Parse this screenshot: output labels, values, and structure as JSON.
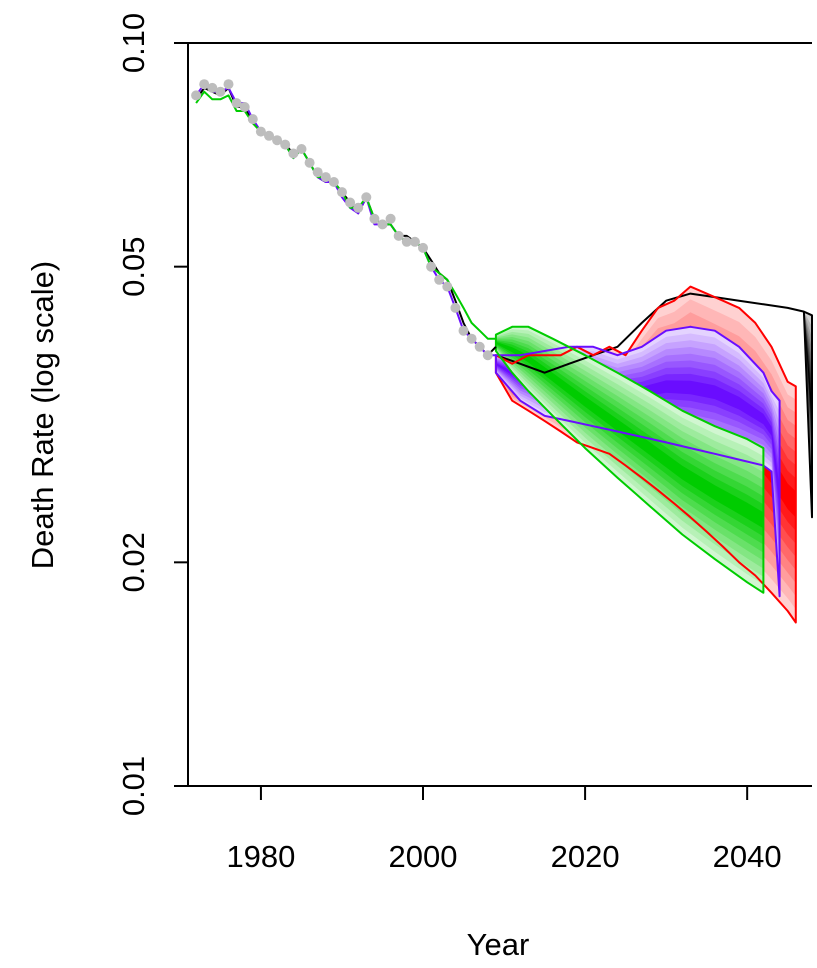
{
  "chart_data": {
    "type": "line",
    "title": "",
    "xlabel": "Year",
    "ylabel": "Death Rate (log scale)",
    "x_axis": {
      "range": [
        1971,
        2048
      ],
      "ticks": [
        1980,
        2000,
        2020,
        2040
      ]
    },
    "y_axis": {
      "scale": "log",
      "range": [
        0.01,
        0.1
      ],
      "ticks": [
        0.01,
        0.02,
        0.05,
        0.1
      ],
      "tick_labels": [
        "0.01",
        "0.02",
        "0.05",
        "0.10"
      ]
    },
    "grid": false,
    "legend": "none",
    "observed": {
      "color": "#bdbdbd",
      "x": [
        1972,
        1973,
        1974,
        1975,
        1976,
        1977,
        1978,
        1979,
        1980,
        1981,
        1982,
        1983,
        1984,
        1985,
        1986,
        1987,
        1988,
        1989,
        1990,
        1991,
        1992,
        1993,
        1994,
        1995,
        1996,
        1997,
        1998,
        1999,
        2000,
        2001,
        2002,
        2003,
        2004,
        2005,
        2006,
        2007,
        2008
      ],
      "y": [
        0.085,
        0.088,
        0.087,
        0.086,
        0.088,
        0.083,
        0.082,
        0.079,
        0.076,
        0.075,
        0.074,
        0.073,
        0.071,
        0.072,
        0.069,
        0.067,
        0.066,
        0.065,
        0.063,
        0.061,
        0.06,
        0.062,
        0.058,
        0.057,
        0.058,
        0.055,
        0.054,
        0.054,
        0.053,
        0.05,
        0.048,
        0.047,
        0.044,
        0.041,
        0.04,
        0.039,
        0.038
      ]
    },
    "series": [
      {
        "color": "#000000",
        "history": {
          "x": [
            1972,
            1973,
            1974,
            1975,
            1976,
            1977,
            1978,
            1979,
            1980,
            1981,
            1982,
            1983,
            1984,
            1985,
            1986,
            1987,
            1988,
            1989,
            1990,
            1991,
            1992,
            1993,
            1994,
            1995,
            1996,
            1997,
            1998,
            1999,
            2000,
            2001,
            2002,
            2003,
            2004,
            2005,
            2006,
            2007,
            2008,
            2009
          ],
          "y": [
            0.084,
            0.087,
            0.086,
            0.085,
            0.087,
            0.082,
            0.082,
            0.078,
            0.076,
            0.075,
            0.074,
            0.073,
            0.071,
            0.072,
            0.069,
            0.066,
            0.065,
            0.065,
            0.063,
            0.061,
            0.059,
            0.062,
            0.058,
            0.057,
            0.057,
            0.055,
            0.055,
            0.054,
            0.053,
            0.051,
            0.049,
            0.048,
            0.045,
            0.042,
            0.04,
            0.039,
            0.038,
            0.039
          ]
        },
        "fan": {
          "x": [
            2009,
            2012,
            2015,
            2018,
            2021,
            2024,
            2027,
            2030,
            2033,
            2036,
            2039,
            2042,
            2045,
            2047,
            2048
          ],
          "upper": [
            0.038,
            0.037,
            0.036,
            0.037,
            0.038,
            0.039,
            0.042,
            0.045,
            0.046,
            0.0455,
            0.045,
            0.0445,
            0.044,
            0.0435,
            0.043
          ],
          "lower": [
            0.038,
            0.037,
            0.036,
            0.037,
            0.038,
            0.039,
            0.042,
            0.045,
            0.046,
            0.0455,
            0.045,
            0.0445,
            0.044,
            0.0435,
            0.023
          ]
        }
      },
      {
        "color": "#ff0000",
        "fan": {
          "x": [
            2009,
            2011,
            2013,
            2015,
            2017,
            2019,
            2021,
            2023,
            2025,
            2027,
            2029,
            2031,
            2033,
            2035,
            2037,
            2039,
            2041,
            2043,
            2045,
            2046
          ],
          "upper": [
            0.038,
            0.037,
            0.038,
            0.038,
            0.038,
            0.039,
            0.038,
            0.039,
            0.038,
            0.041,
            0.044,
            0.045,
            0.047,
            0.046,
            0.045,
            0.044,
            0.042,
            0.039,
            0.035,
            0.0345
          ],
          "lower": [
            0.036,
            0.033,
            0.032,
            0.031,
            0.03,
            0.029,
            0.0285,
            0.028,
            0.027,
            0.026,
            0.025,
            0.024,
            0.023,
            0.022,
            0.021,
            0.02,
            0.0192,
            0.0182,
            0.0172,
            0.0166
          ]
        }
      },
      {
        "color": "#6a0dff",
        "history": {
          "x": [
            1972,
            1973,
            1974,
            1975,
            1976,
            1977,
            1978,
            1979,
            1980,
            1981,
            1982,
            1983,
            1984,
            1985,
            1986,
            1987,
            1988,
            1989,
            1990,
            1991,
            1992,
            1993,
            1994,
            1995,
            1996,
            1997,
            1998,
            1999,
            2000,
            2001,
            2002,
            2003,
            2004,
            2005,
            2006,
            2007,
            2008,
            2009
          ],
          "y": [
            0.085,
            0.088,
            0.086,
            0.086,
            0.087,
            0.083,
            0.083,
            0.079,
            0.076,
            0.075,
            0.074,
            0.073,
            0.07,
            0.072,
            0.069,
            0.066,
            0.065,
            0.065,
            0.062,
            0.06,
            0.059,
            0.062,
            0.057,
            0.057,
            0.057,
            0.055,
            0.054,
            0.054,
            0.053,
            0.05,
            0.048,
            0.047,
            0.044,
            0.041,
            0.04,
            0.039,
            0.038,
            0.038
          ]
        },
        "fan": {
          "x": [
            2009,
            2012,
            2015,
            2018,
            2021,
            2024,
            2027,
            2030,
            2033,
            2036,
            2039,
            2042,
            2043,
            2044
          ],
          "upper": [
            0.038,
            0.038,
            0.0385,
            0.039,
            0.039,
            0.038,
            0.039,
            0.041,
            0.0415,
            0.041,
            0.039,
            0.036,
            0.034,
            0.033
          ],
          "lower": [
            0.036,
            0.033,
            0.0315,
            0.031,
            0.0305,
            0.03,
            0.0295,
            0.029,
            0.0285,
            0.028,
            0.0275,
            0.027,
            0.0265,
            0.018
          ]
        }
      },
      {
        "color": "#00cc00",
        "history": {
          "x": [
            1972,
            1973,
            1974,
            1975,
            1976,
            1977,
            1978,
            1979,
            1980,
            1981,
            1982,
            1983,
            1984,
            1985,
            1986,
            1987,
            1988,
            1989,
            1990,
            1991,
            1992,
            1993,
            1994,
            1995,
            1996,
            1997,
            1998,
            1999,
            2000,
            2001,
            2002,
            2003,
            2004,
            2005,
            2006,
            2007,
            2008,
            2009
          ],
          "y": [
            0.083,
            0.086,
            0.084,
            0.084,
            0.085,
            0.081,
            0.081,
            0.078,
            0.076,
            0.075,
            0.074,
            0.073,
            0.07,
            0.072,
            0.069,
            0.066,
            0.066,
            0.065,
            0.063,
            0.06,
            0.06,
            0.062,
            0.058,
            0.057,
            0.057,
            0.055,
            0.054,
            0.054,
            0.053,
            0.05,
            0.049,
            0.048,
            0.046,
            0.044,
            0.042,
            0.041,
            0.04,
            0.04
          ]
        },
        "fan": {
          "x": [
            2009,
            2011,
            2013,
            2016,
            2020,
            2024,
            2028,
            2032,
            2036,
            2040,
            2042
          ],
          "upper": [
            0.0405,
            0.0415,
            0.0415,
            0.04,
            0.038,
            0.036,
            0.034,
            0.032,
            0.0305,
            0.0293,
            0.0285
          ],
          "lower": [
            0.0385,
            0.036,
            0.034,
            0.0315,
            0.0285,
            0.026,
            0.0238,
            0.0218,
            0.0202,
            0.0188,
            0.0182
          ]
        }
      }
    ]
  }
}
